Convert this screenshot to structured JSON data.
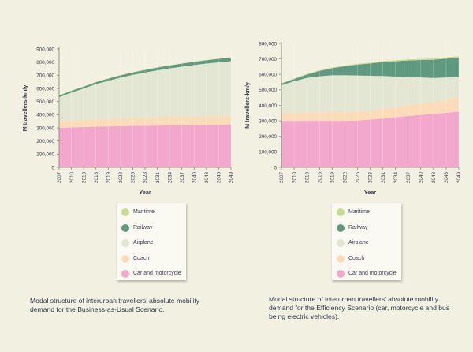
{
  "colors": {
    "maritime": "#c8dc8c",
    "railway": "#5f9a80",
    "airplane": "#e3e6d2",
    "coach": "#fcdcb8",
    "car": "#f3a7cc",
    "axis": "#7a8070",
    "text": "#3a3f52"
  },
  "chart_data": [
    {
      "type": "area",
      "stacked": true,
      "title": "",
      "xlabel": "Year",
      "ylabel": "M travellers-km/y",
      "ylim": [
        0,
        900000
      ],
      "yticks": [
        "0",
        "100,000",
        "200,000",
        "300,000",
        "400,000",
        "500,000",
        "600,000",
        "700,000",
        "800,000",
        "900,000"
      ],
      "x": [
        "2007",
        "2010",
        "2013",
        "2016",
        "2019",
        "2022",
        "2025",
        "2028",
        "2031",
        "2034",
        "2037",
        "2040",
        "2043",
        "2046",
        "2049"
      ],
      "series": [
        {
          "name": "Car and motorcycle",
          "key": "car",
          "values": [
            300000,
            303000,
            306000,
            309000,
            311000,
            313000,
            315000,
            316000,
            317000,
            318000,
            319000,
            320000,
            321000,
            322000,
            323000
          ]
        },
        {
          "name": "Coach",
          "key": "coach",
          "values": [
            48000,
            50000,
            53000,
            55000,
            57000,
            59000,
            60000,
            62000,
            63000,
            64000,
            64000,
            65000,
            66000,
            66000,
            67000
          ]
        },
        {
          "name": "Airplane",
          "key": "airplane",
          "values": [
            185000,
            215000,
            240000,
            268000,
            290000,
            310000,
            328000,
            343000,
            357000,
            370000,
            382000,
            393000,
            402000,
            410000,
            417000
          ]
        },
        {
          "name": "Railway",
          "key": "railway",
          "values": [
            12000,
            13000,
            14000,
            15000,
            16000,
            17000,
            18000,
            19000,
            21000,
            22000,
            23000,
            24000,
            25000,
            27000,
            28000
          ]
        },
        {
          "name": "Maritime",
          "key": "maritime",
          "values": [
            3000,
            3000,
            3000,
            3000,
            3000,
            3000,
            3000,
            3000,
            3000,
            3000,
            3000,
            3000,
            3000,
            3000,
            3000
          ]
        }
      ],
      "caption": "Modal structure of interurban travellers’ absolute mobility demand for the Business-as-Usual Scenario."
    },
    {
      "type": "area",
      "stacked": true,
      "title": "",
      "xlabel": "Year",
      "ylabel": "M travellers-km/y",
      "ylim": [
        0,
        800000
      ],
      "yticks": [
        "0",
        "100,000",
        "200,000",
        "300,000",
        "400,000",
        "500,000",
        "600,000",
        "700,000",
        "800,000"
      ],
      "x": [
        "2007",
        "2010",
        "2013",
        "2016",
        "2019",
        "2022",
        "2025",
        "2028",
        "2031",
        "2034",
        "2037",
        "2040",
        "2043",
        "2046",
        "2049"
      ],
      "series": [
        {
          "name": "Car and motorcycle",
          "key": "car",
          "values": [
            300000,
            300000,
            300000,
            300000,
            300000,
            300000,
            302000,
            308000,
            315000,
            323000,
            331000,
            338000,
            345000,
            352000,
            360000
          ]
        },
        {
          "name": "Coach",
          "key": "coach",
          "values": [
            50000,
            51000,
            52000,
            53000,
            54000,
            55000,
            56000,
            58000,
            60000,
            63000,
            67000,
            72000,
            77000,
            83000,
            88000
          ]
        },
        {
          "name": "Airplane",
          "key": "airplane",
          "values": [
            180000,
            205000,
            225000,
            235000,
            240000,
            240000,
            235000,
            225000,
            215000,
            200000,
            185000,
            170000,
            155000,
            145000,
            135000
          ]
        },
        {
          "name": "Railway",
          "key": "railway",
          "values": [
            10000,
            14000,
            22000,
            34000,
            46000,
            58000,
            70000,
            80000,
            90000,
            99000,
            107000,
            113000,
            118000,
            122000,
            125000
          ]
        },
        {
          "name": "Maritime",
          "key": "maritime",
          "values": [
            4000,
            4000,
            4000,
            4000,
            4000,
            5000,
            5000,
            5000,
            6000,
            6000,
            7000,
            7000,
            8000,
            8000,
            9000
          ]
        }
      ],
      "caption": "Modal structure of interurban travellers’ absolute mobility demand for the Efficiency Scenario (car, motorcycle and bus being electric vehicles)."
    }
  ],
  "legend": [
    {
      "key": "maritime",
      "label": "Maritime"
    },
    {
      "key": "railway",
      "label": "Railway"
    },
    {
      "key": "airplane",
      "label": "Airplane"
    },
    {
      "key": "coach",
      "label": "Coach"
    },
    {
      "key": "car",
      "label": "Car and motorcycle"
    }
  ]
}
